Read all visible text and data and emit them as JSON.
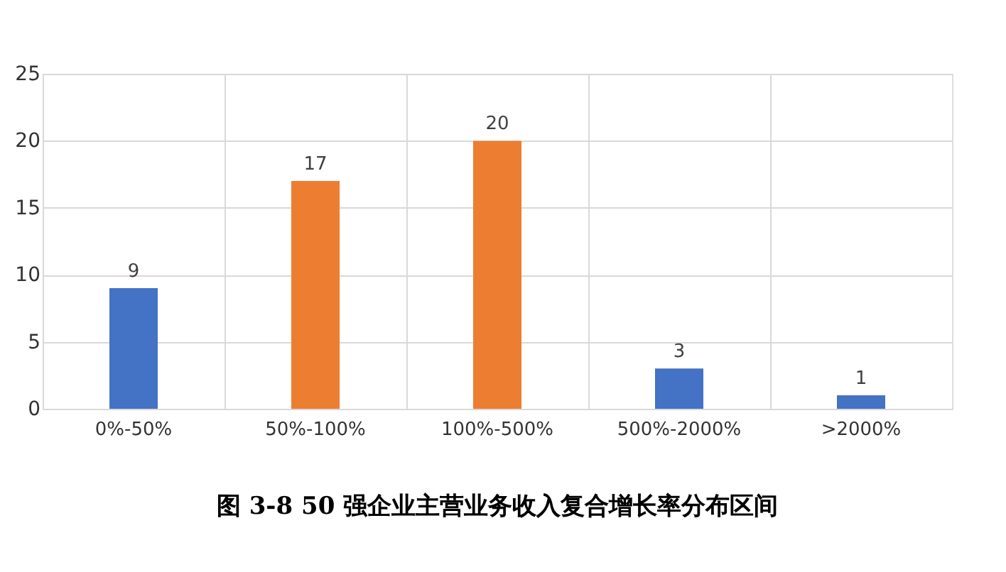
{
  "chart_data": {
    "type": "bar",
    "title": "图 3-8 50 强企业主营业务收入复合增长率分布区间",
    "categories": [
      "0%-50%",
      "50%-100%",
      "100%-500%",
      "500%-2000%",
      ">2000%"
    ],
    "values": [
      9,
      17,
      20,
      3,
      1
    ],
    "colors": [
      "#4472c4",
      "#ed7d31",
      "#ed7d31",
      "#4472c4",
      "#4472c4"
    ],
    "ylim": [
      0,
      25
    ],
    "yticks": [
      0,
      5,
      10,
      15,
      20,
      25
    ],
    "grid": true,
    "data_labels": true
  }
}
